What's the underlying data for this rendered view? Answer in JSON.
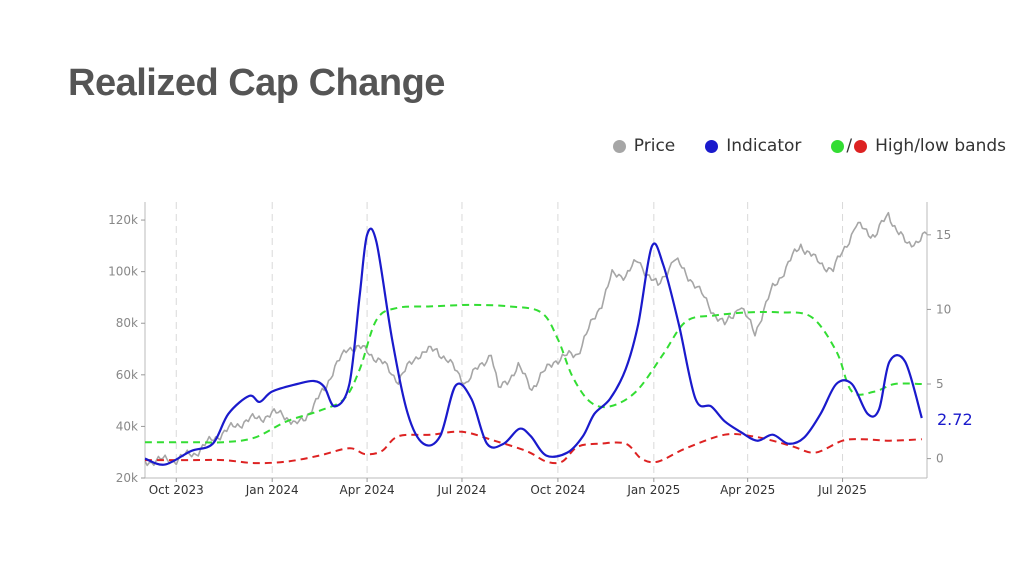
{
  "title": "Realized Cap Change",
  "legend": {
    "price": "Price",
    "indicator": "Indicator",
    "bands_slash": "/",
    "bands": "High/low bands"
  },
  "colors": {
    "price": "#a6a6a6",
    "indicator": "#1a1acc",
    "high_band": "#33dd33",
    "low_band": "#dd2222",
    "axis_text": "#888888",
    "grid": "#d9d9d9"
  },
  "chart_data": {
    "type": "line",
    "title": "Realized Cap Change",
    "x_domain": [
      "2023-09-01",
      "2025-09-20"
    ],
    "x_ticks": [
      {
        "date": "2023-10-01",
        "label": "Oct 2023"
      },
      {
        "date": "2024-01-01",
        "label": "Jan 2024"
      },
      {
        "date": "2024-04-01",
        "label": "Apr 2024"
      },
      {
        "date": "2024-07-01",
        "label": "Jul 2024"
      },
      {
        "date": "2024-10-01",
        "label": "Oct 2024"
      },
      {
        "date": "2025-01-01",
        "label": "Jan 2025"
      },
      {
        "date": "2025-04-01",
        "label": "Apr 2025"
      },
      {
        "date": "2025-07-01",
        "label": "Jul 2025"
      }
    ],
    "y_left": {
      "range": [
        20000,
        127000
      ],
      "ticks": [
        20000,
        40000,
        60000,
        80000,
        100000,
        120000
      ],
      "tick_labels": [
        "20k",
        "40k",
        "60k",
        "80k",
        "100k",
        "120k"
      ]
    },
    "y_right": {
      "range": [
        -1.3,
        17.2
      ],
      "ticks": [
        0,
        5,
        10,
        15
      ],
      "tick_labels": [
        "0",
        "5",
        "10",
        "15"
      ]
    },
    "grid": "vertical dashed at x ticks",
    "legend_position": "top-right",
    "last_value_label": "2.72",
    "series": [
      {
        "name": "Price",
        "axis": "left",
        "dates": [
          "2023-09-01",
          "2023-10-01",
          "2023-10-20",
          "2023-11-10",
          "2023-12-05",
          "2024-01-11",
          "2024-01-23",
          "2024-02-10",
          "2024-02-28",
          "2024-03-14",
          "2024-04-01",
          "2024-04-18",
          "2024-05-01",
          "2024-05-20",
          "2024-06-07",
          "2024-07-05",
          "2024-07-29",
          "2024-08-05",
          "2024-08-24",
          "2024-09-06",
          "2024-09-27",
          "2024-10-20",
          "2024-11-12",
          "2024-11-22",
          "2024-12-05",
          "2024-12-17",
          "2025-01-05",
          "2025-01-20",
          "2025-02-05",
          "2025-02-27",
          "2025-03-10",
          "2025-03-24",
          "2025-04-08",
          "2025-04-25",
          "2025-05-10",
          "2025-05-22",
          "2025-06-05",
          "2025-06-22",
          "2025-07-14",
          "2025-08-01",
          "2025-08-14",
          "2025-09-01",
          "2025-09-20"
        ],
        "values": [
          26500,
          27200,
          30000,
          36500,
          42000,
          45500,
          40000,
          47500,
          61000,
          71000,
          69500,
          63500,
          58000,
          68000,
          70000,
          57000,
          68500,
          54000,
          63000,
          55000,
          65500,
          68500,
          88000,
          98500,
          99000,
          104000,
          94000,
          105000,
          97500,
          84500,
          79000,
          87000,
          76500,
          93500,
          103000,
          110500,
          104500,
          100500,
          118000,
          114000,
          122000,
          110000,
          114500
        ]
      },
      {
        "name": "Indicator",
        "axis": "right",
        "dates": [
          "2023-09-01",
          "2023-09-20",
          "2023-10-15",
          "2023-11-05",
          "2023-11-20",
          "2023-12-10",
          "2023-12-20",
          "2024-01-01",
          "2024-01-25",
          "2024-02-10",
          "2024-02-20",
          "2024-03-01",
          "2024-03-15",
          "2024-03-25",
          "2024-04-01",
          "2024-04-10",
          "2024-04-25",
          "2024-05-10",
          "2024-05-25",
          "2024-06-10",
          "2024-06-25",
          "2024-07-10",
          "2024-07-25",
          "2024-08-10",
          "2024-08-25",
          "2024-09-05",
          "2024-09-20",
          "2024-10-10",
          "2024-10-25",
          "2024-11-05",
          "2024-11-20",
          "2024-12-05",
          "2024-12-17",
          "2024-12-30",
          "2025-01-10",
          "2025-01-25",
          "2025-02-10",
          "2025-02-25",
          "2025-03-10",
          "2025-03-25",
          "2025-04-10",
          "2025-04-25",
          "2025-05-10",
          "2025-05-25",
          "2025-06-10",
          "2025-06-25",
          "2025-07-10",
          "2025-07-25",
          "2025-08-05",
          "2025-08-15",
          "2025-08-30",
          "2025-09-15"
        ],
        "values": [
          0,
          -0.4,
          0.5,
          1.0,
          3.0,
          4.2,
          3.8,
          4.5,
          5.0,
          5.2,
          4.8,
          3.5,
          5.0,
          11.0,
          15.0,
          14.5,
          8.0,
          3.0,
          1.0,
          1.5,
          4.9,
          4.0,
          1.0,
          1.0,
          2.0,
          1.5,
          0.2,
          0.4,
          1.5,
          3.0,
          4.0,
          6.0,
          9.0,
          14.2,
          13.0,
          9.0,
          4.0,
          3.5,
          2.5,
          1.8,
          1.2,
          1.6,
          1.0,
          1.4,
          3.0,
          5.0,
          5.0,
          3.0,
          3.3,
          6.5,
          6.5,
          2.72
        ]
      },
      {
        "name": "High band",
        "axis": "right",
        "dates": [
          "2023-09-01",
          "2023-10-15",
          "2023-11-15",
          "2023-12-15",
          "2024-01-15",
          "2024-02-15",
          "2024-03-10",
          "2024-03-25",
          "2024-04-10",
          "2024-04-30",
          "2024-06-01",
          "2024-07-10",
          "2024-08-15",
          "2024-09-15",
          "2024-10-01",
          "2024-10-15",
          "2024-11-01",
          "2024-11-20",
          "2024-12-15",
          "2025-01-10",
          "2025-02-01",
          "2025-03-01",
          "2025-04-01",
          "2025-05-01",
          "2025-06-01",
          "2025-06-25",
          "2025-07-10",
          "2025-08-01",
          "2025-08-20",
          "2025-09-15"
        ],
        "values": [
          1.1,
          1.1,
          1.1,
          1.4,
          2.5,
          3.2,
          4.0,
          6.0,
          9.3,
          10.1,
          10.2,
          10.3,
          10.2,
          9.8,
          8.0,
          5.5,
          3.8,
          3.5,
          4.5,
          7.0,
          9.2,
          9.6,
          9.8,
          9.8,
          9.5,
          7.2,
          4.5,
          4.5,
          5.0,
          5.0
        ]
      },
      {
        "name": "Low band",
        "axis": "right",
        "dates": [
          "2023-09-01",
          "2023-10-15",
          "2023-11-15",
          "2023-12-15",
          "2024-01-15",
          "2024-02-15",
          "2024-03-15",
          "2024-03-30",
          "2024-04-15",
          "2024-05-01",
          "2024-06-01",
          "2024-07-01",
          "2024-08-01",
          "2024-09-01",
          "2024-09-20",
          "2024-10-05",
          "2024-10-20",
          "2024-11-10",
          "2024-12-05",
          "2024-12-20",
          "2025-01-05",
          "2025-02-01",
          "2025-03-10",
          "2025-04-05",
          "2025-04-25",
          "2025-05-15",
          "2025-06-05",
          "2025-07-01",
          "2025-07-20",
          "2025-08-15",
          "2025-09-15"
        ],
        "values": [
          -0.1,
          -0.1,
          -0.1,
          -0.3,
          -0.2,
          0.2,
          0.7,
          0.3,
          0.5,
          1.5,
          1.6,
          1.8,
          1.2,
          0.5,
          -0.2,
          -0.2,
          0.8,
          1.0,
          1.0,
          0.0,
          -0.2,
          0.7,
          1.6,
          1.5,
          1.2,
          0.8,
          0.4,
          1.2,
          1.3,
          1.2,
          1.3
        ]
      }
    ]
  }
}
